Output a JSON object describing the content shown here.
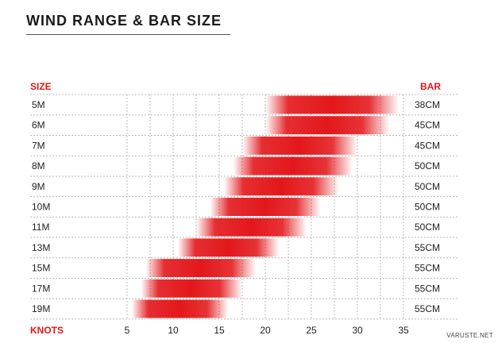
{
  "title": "WIND RANGE & BAR SIZE",
  "watermark": "VARUSTE.NET",
  "colors": {
    "accent": "#e3171b",
    "grid": "#b8b8b8"
  },
  "chart_data": {
    "type": "bar",
    "orientation": "horizontal-range",
    "left_header": "SIZE",
    "right_header": "BAR",
    "x_label": "KNOTS",
    "x_ticks": [
      5,
      10,
      15,
      20,
      25,
      30,
      35
    ],
    "xlim": [
      5,
      35
    ],
    "grid": true,
    "rows": [
      {
        "size": "5M",
        "range": [
          20,
          34.5
        ],
        "bar": "38CM"
      },
      {
        "size": "6M",
        "range": [
          20,
          33.5
        ],
        "bar": "45CM"
      },
      {
        "size": "7M",
        "range": [
          17.5,
          30
        ],
        "bar": "45CM"
      },
      {
        "size": "8M",
        "range": [
          16.5,
          29.5
        ],
        "bar": "50CM"
      },
      {
        "size": "9M",
        "range": [
          15.5,
          28
        ],
        "bar": "50CM"
      },
      {
        "size": "10M",
        "range": [
          14,
          26
        ],
        "bar": "50CM"
      },
      {
        "size": "11M",
        "range": [
          12.5,
          24.5
        ],
        "bar": "50CM"
      },
      {
        "size": "13M",
        "range": [
          10.5,
          21.5
        ],
        "bar": "55CM"
      },
      {
        "size": "15M",
        "range": [
          7,
          19
        ],
        "bar": "55CM"
      },
      {
        "size": "17M",
        "range": [
          6.5,
          17.5
        ],
        "bar": "55CM"
      },
      {
        "size": "19M",
        "range": [
          5.5,
          16
        ],
        "bar": "55CM"
      }
    ]
  }
}
